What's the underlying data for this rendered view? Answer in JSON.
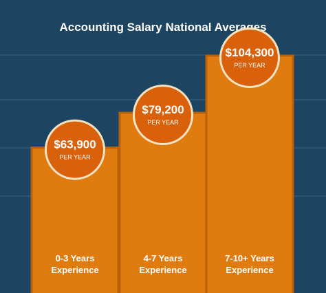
{
  "chart_data": {
    "type": "bar",
    "title": "Accounting Salary National Averages",
    "categories": [
      "0-3 Years Experience",
      "4-7 Years Experience",
      "7-10+ Years Experience"
    ],
    "category_lines": [
      [
        "0-3 Years",
        "Experience"
      ],
      [
        "4-7 Years",
        "Experience"
      ],
      [
        "7-10+ Years",
        "Experience"
      ]
    ],
    "values": [
      63900,
      79200,
      104300
    ],
    "data_labels": [
      "$63,900",
      "$79,200",
      "$104,300"
    ],
    "data_sublabel": "PER YEAR",
    "xlabel": "",
    "ylabel": "",
    "ylim": [
      0,
      120000
    ],
    "grid": true,
    "colors": {
      "background": "#1d4461",
      "bar": "#e07b10",
      "bar_border": "#b8610a",
      "circle": "#d9610b",
      "circle_ring": "#f4e3c2",
      "grid": "#3a6384",
      "text": "#ffffff"
    }
  }
}
